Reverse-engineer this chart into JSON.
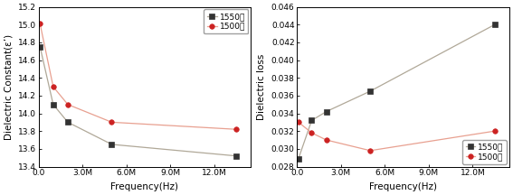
{
  "left": {
    "ylabel": "Dielectric Constant(ε’)",
    "xlabel": "Frequency(Hz)",
    "series": [
      {
        "label": "1550도",
        "line_color": "#b0a898",
        "marker_color": "#333333",
        "marker": "s",
        "x": [
          100000.0,
          1000000.0,
          2000000.0,
          5000000.0,
          13500000.0
        ],
        "y": [
          14.75,
          14.1,
          13.9,
          13.65,
          13.52
        ]
      },
      {
        "label": "1500도",
        "line_color": "#e8a090",
        "marker_color": "#cc2222",
        "marker": "o",
        "x": [
          100000.0,
          1000000.0,
          2000000.0,
          5000000.0,
          13500000.0
        ],
        "y": [
          15.01,
          14.3,
          14.1,
          13.9,
          13.82
        ]
      }
    ],
    "ylim": [
      13.4,
      15.2
    ],
    "yticks": [
      13.4,
      13.6,
      13.8,
      14.0,
      14.2,
      14.4,
      14.6,
      14.8,
      15.0,
      15.2
    ],
    "yticklabels": [
      "13.4",
      "13.6",
      "13.8",
      "14.0",
      "14.2",
      "14.4",
      "14.6",
      "14.8",
      "15.0",
      "15.2"
    ],
    "xlim": [
      0.0,
      14500000.0
    ],
    "xticks": [
      0.0,
      3000000.0,
      6000000.0,
      9000000.0,
      12000000.0
    ],
    "xticklabels": [
      "0.0",
      "3.0M",
      "6.0M",
      "9.0M",
      "12.0M"
    ],
    "legend_loc": "upper right"
  },
  "right": {
    "ylabel": "Dielectric loss",
    "xlabel": "Frequency(Hz)",
    "series": [
      {
        "label": "1550도",
        "line_color": "#b0a898",
        "marker_color": "#333333",
        "marker": "s",
        "x": [
          100000.0,
          1000000.0,
          2000000.0,
          5000000.0,
          13500000.0
        ],
        "y": [
          0.0289,
          0.0332,
          0.0342,
          0.0365,
          0.044
        ]
      },
      {
        "label": "1500도",
        "line_color": "#e8a090",
        "marker_color": "#cc2222",
        "marker": "o",
        "x": [
          100000.0,
          1000000.0,
          2000000.0,
          5000000.0,
          13500000.0
        ],
        "y": [
          0.033,
          0.0318,
          0.031,
          0.0298,
          0.032
        ]
      }
    ],
    "ylim": [
      0.028,
      0.046
    ],
    "yticks": [
      0.028,
      0.03,
      0.032,
      0.034,
      0.036,
      0.038,
      0.04,
      0.042,
      0.044,
      0.046
    ],
    "yticklabels": [
      "0.028",
      "0.030",
      "0.032",
      "0.034",
      "0.036",
      "0.038",
      "0.040",
      "0.042",
      "0.044",
      "0.046"
    ],
    "xlim": [
      0.0,
      14500000.0
    ],
    "xticks": [
      0.0,
      3000000.0,
      6000000.0,
      9000000.0,
      12000000.0
    ],
    "xticklabels": [
      "0.0",
      "3.0M",
      "6.0M",
      "9.0M",
      "12.0M"
    ],
    "legend_loc": "lower right"
  },
  "bg_color": "#ffffff",
  "legend_fontsize": 6.5,
  "axis_label_fontsize": 7.5,
  "tick_fontsize": 6.5,
  "linewidth": 0.9,
  "markersize": 4.0
}
